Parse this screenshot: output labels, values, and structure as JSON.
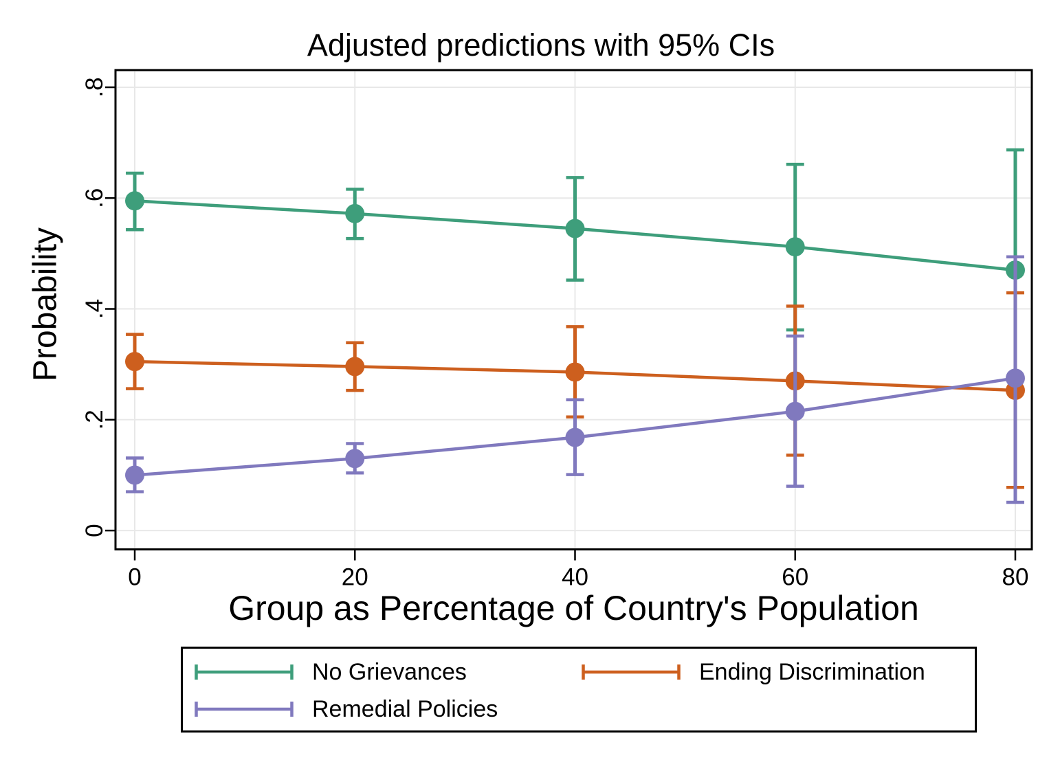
{
  "figure": {
    "background": "#ffffff"
  },
  "colors": {
    "axis": "#000000",
    "grid": "#e8e8e8",
    "text": "#000000",
    "background": "#ffffff"
  },
  "chart_data": {
    "type": "line",
    "title": "Adjusted predictions with 95% CIs",
    "xlabel": "Group as Percentage of Country's Population",
    "ylabel": "Probability",
    "error_bars": "95% confidence intervals with end caps",
    "grid": true,
    "legend_position": "bottom",
    "x": [
      0,
      20,
      40,
      60,
      80
    ],
    "x_tick_labels": [
      "0",
      "20",
      "40",
      "60",
      "80"
    ],
    "y_ticks": [
      {
        "label": "0",
        "value": 0.0
      },
      {
        "label": ".2",
        "value": 0.2
      },
      {
        "label": ".4",
        "value": 0.4
      },
      {
        "label": ".6",
        "value": 0.6
      },
      {
        "label": ".8",
        "value": 0.8
      }
    ],
    "xlim": [
      -1.75,
      81.5
    ],
    "ylim": [
      -0.034,
      0.831
    ],
    "series": [
      {
        "name": "No Grievances",
        "color": "#3e9e7b",
        "x": [
          0,
          20,
          40,
          60,
          80
        ],
        "y": [
          0.595,
          0.572,
          0.545,
          0.512,
          0.47
        ],
        "ci_low": [
          0.543,
          0.527,
          0.452,
          0.362,
          0.253
        ],
        "ci_high": [
          0.645,
          0.616,
          0.637,
          0.661,
          0.687
        ]
      },
      {
        "name": "Ending Discrimination",
        "color": "#cd5f1e",
        "x": [
          0,
          20,
          40,
          60,
          80
        ],
        "y": [
          0.305,
          0.296,
          0.286,
          0.27,
          0.253
        ],
        "ci_low": [
          0.256,
          0.253,
          0.205,
          0.136,
          0.078
        ],
        "ci_high": [
          0.354,
          0.339,
          0.368,
          0.405,
          0.429
        ]
      },
      {
        "name": "Remedial Policies",
        "color": "#8079be",
        "x": [
          0,
          20,
          40,
          60,
          80
        ],
        "y": [
          0.1,
          0.13,
          0.168,
          0.215,
          0.275
        ],
        "ci_low": [
          0.07,
          0.104,
          0.101,
          0.08,
          0.051
        ],
        "ci_high": [
          0.131,
          0.157,
          0.236,
          0.351,
          0.494
        ]
      }
    ]
  }
}
